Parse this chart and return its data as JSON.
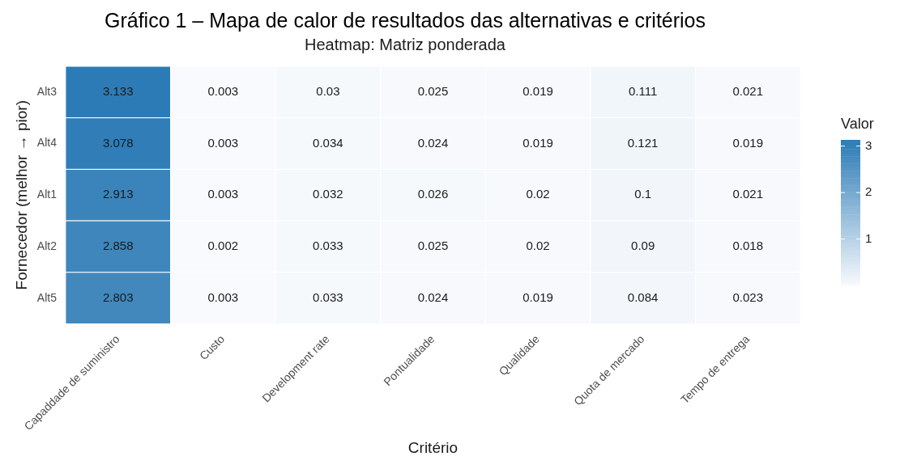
{
  "chart_data": {
    "type": "heatmap",
    "title": "Gráfico 1 – Mapa de calor de resultados das alternativas e critérios",
    "subtitle": "Heatmap: Matriz ponderada",
    "xlabel": "Critério",
    "ylabel": "Fornecedor (melhor → pior)",
    "clabel": "Valor",
    "categories": [
      "Capaddade de suministro",
      "Custo",
      "Development rate",
      "Pontualidade",
      "Qualidade",
      "Quota de mercado",
      "Tempo de entrega"
    ],
    "y_categories": [
      "Alt3",
      "Alt4",
      "Alt1",
      "Alt2",
      "Alt5"
    ],
    "cells": [
      [
        3.133,
        0.003,
        0.03,
        0.025,
        0.019,
        0.111,
        0.021
      ],
      [
        3.078,
        0.003,
        0.034,
        0.024,
        0.019,
        0.121,
        0.019
      ],
      [
        2.913,
        0.003,
        0.032,
        0.026,
        0.02,
        0.1,
        0.021
      ],
      [
        2.858,
        0.002,
        0.033,
        0.025,
        0.02,
        0.09,
        0.018
      ],
      [
        2.803,
        0.003,
        0.033,
        0.024,
        0.019,
        0.084,
        0.023
      ]
    ],
    "clim": [
      0.002,
      3.133
    ],
    "cticks": [
      1,
      2,
      3
    ],
    "data_labels": true
  }
}
